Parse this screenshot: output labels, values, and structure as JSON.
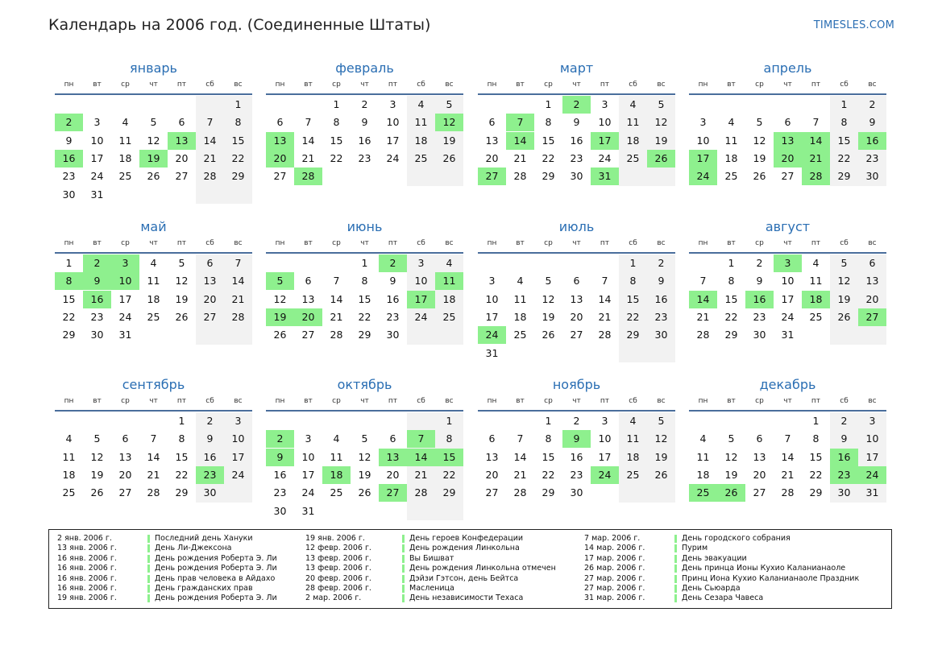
{
  "title": "Календарь на 2006 год. (Соединенные Штаты)",
  "brand": "TIMESLES.COM",
  "colors": {
    "accent": "#2a6eb3",
    "holiday": "#8ef08e",
    "weekend": "#f2f2f2",
    "rule": "#4a6e9c"
  },
  "weekdays": [
    "пн",
    "вт",
    "ср",
    "чт",
    "пт",
    "сб",
    "вс"
  ],
  "months": [
    {
      "name": "январь",
      "first_weekday": 6,
      "days": 31,
      "holidays": [
        2,
        13,
        16,
        19
      ]
    },
    {
      "name": "февраль",
      "first_weekday": 2,
      "days": 28,
      "holidays": [
        12,
        13,
        20,
        28
      ]
    },
    {
      "name": "март",
      "first_weekday": 2,
      "days": 31,
      "holidays": [
        2,
        7,
        14,
        17,
        26,
        27,
        31
      ]
    },
    {
      "name": "апрель",
      "first_weekday": 5,
      "days": 30,
      "holidays": [
        13,
        14,
        16,
        17,
        20,
        21,
        24,
        28
      ]
    },
    {
      "name": "май",
      "first_weekday": 0,
      "days": 31,
      "holidays": [
        2,
        3,
        8,
        9,
        10,
        16
      ]
    },
    {
      "name": "июнь",
      "first_weekday": 3,
      "days": 30,
      "holidays": [
        2,
        5,
        11,
        17,
        19,
        20
      ]
    },
    {
      "name": "июль",
      "first_weekday": 5,
      "days": 31,
      "holidays": [
        24
      ]
    },
    {
      "name": "август",
      "first_weekday": 1,
      "days": 31,
      "holidays": [
        3,
        14,
        16,
        18,
        27
      ]
    },
    {
      "name": "сентябрь",
      "first_weekday": 4,
      "days": 30,
      "holidays": [
        23
      ]
    },
    {
      "name": "октябрь",
      "first_weekday": 6,
      "days": 31,
      "holidays": [
        2,
        7,
        9,
        13,
        14,
        15,
        18,
        27
      ]
    },
    {
      "name": "ноябрь",
      "first_weekday": 2,
      "days": 30,
      "holidays": [
        9,
        24
      ]
    },
    {
      "name": "декабрь",
      "first_weekday": 4,
      "days": 31,
      "holidays": [
        16,
        23,
        24,
        25,
        26
      ]
    }
  ],
  "legend": [
    [
      {
        "date": "2 янв. 2006 г.",
        "name": "Последний день Хануки"
      },
      {
        "date": "13 янв. 2006 г.",
        "name": "День Ли-Джексона"
      },
      {
        "date": "16 янв. 2006 г.",
        "name": "День рождения Роберта Э. Ли"
      },
      {
        "date": "16 янв. 2006 г.",
        "name": "День рождения Роберта Э. Ли"
      },
      {
        "date": "16 янв. 2006 г.",
        "name": "День прав человека в Айдахо"
      },
      {
        "date": "16 янв. 2006 г.",
        "name": "День гражданских прав"
      },
      {
        "date": "19 янв. 2006 г.",
        "name": "День рождения Роберта Э. Ли"
      }
    ],
    [
      {
        "date": "19 янв. 2006 г.",
        "name": "День героев Конфедерации"
      },
      {
        "date": "12 февр. 2006 г.",
        "name": "День рождения Линкольна"
      },
      {
        "date": "13 февр. 2006 г.",
        "name": "Вы Бишват"
      },
      {
        "date": "13 февр. 2006 г.",
        "name": "День рождения Линкольна отмечен"
      },
      {
        "date": "20 февр. 2006 г.",
        "name": "Дэйзи Гэтсон, день Бейтса"
      },
      {
        "date": "28 февр. 2006 г.",
        "name": "Масленица"
      },
      {
        "date": "2 мар. 2006 г.",
        "name": "День независимости Техаса"
      }
    ],
    [
      {
        "date": "7 мар. 2006 г.",
        "name": "День городского собрания"
      },
      {
        "date": "14 мар. 2006 г.",
        "name": "Пурим"
      },
      {
        "date": "17 мар. 2006 г.",
        "name": "День эвакуации"
      },
      {
        "date": "26 мар. 2006 г.",
        "name": "День принца Ионы Кухио Каланианаоле"
      },
      {
        "date": "27 мар. 2006 г.",
        "name": "Принц Иона Кухио Каланианаоле Праздник"
      },
      {
        "date": "27 мар. 2006 г.",
        "name": "День Сьюарда"
      },
      {
        "date": "31 мар. 2006 г.",
        "name": "День Сезара Чавеса"
      }
    ]
  ]
}
